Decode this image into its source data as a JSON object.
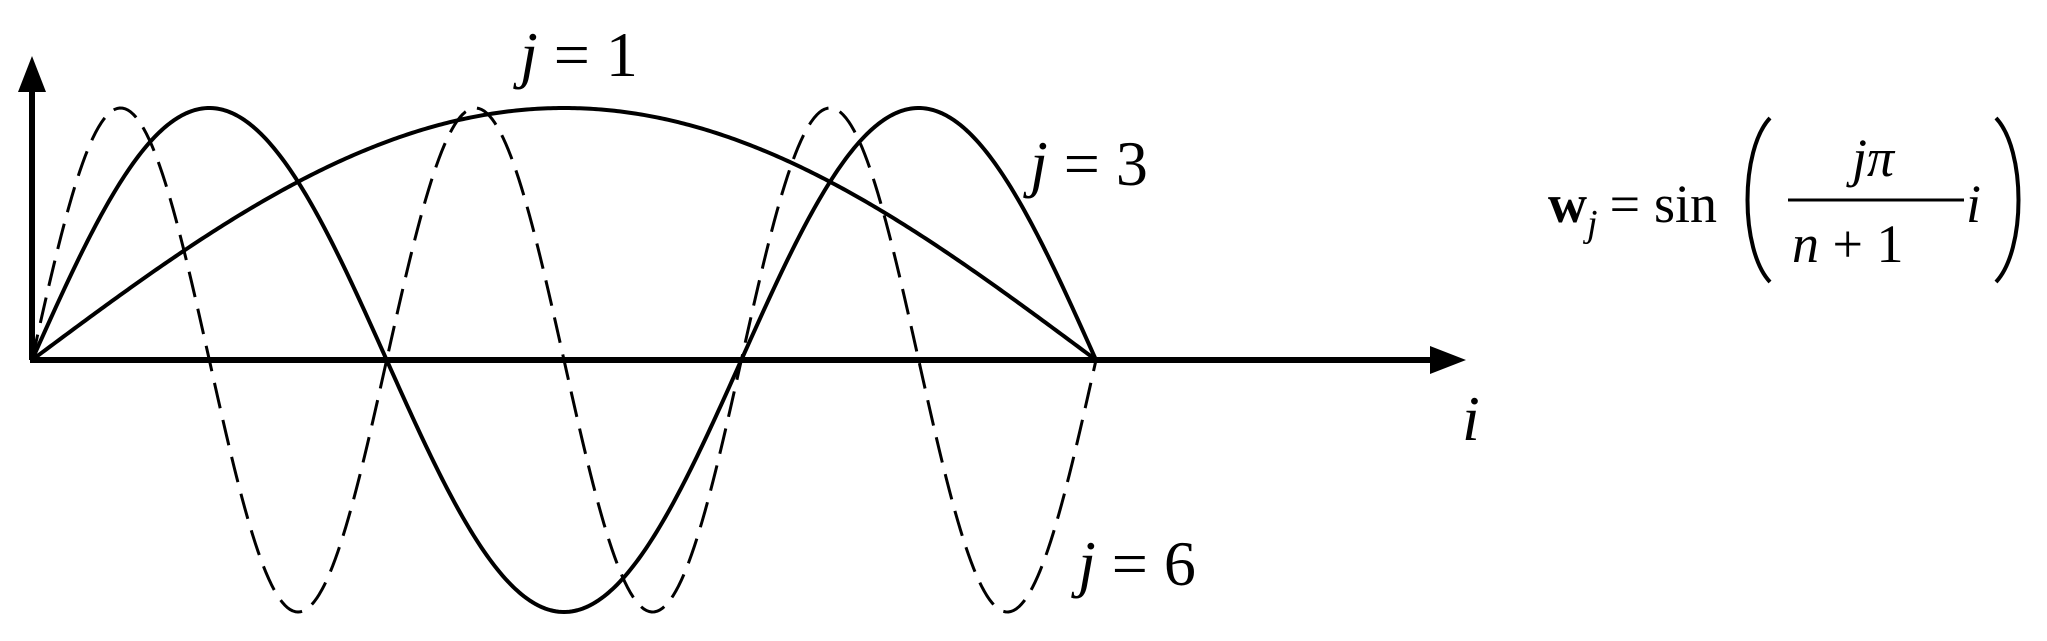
{
  "chart_data": {
    "type": "line",
    "xlabel": "i",
    "ylabel": "",
    "title": "",
    "grid": false,
    "x_domain": [
      0,
      1
    ],
    "y_domain": [
      -1,
      1
    ],
    "series": [
      {
        "name": "j = 1",
        "j": 1,
        "style": "solid",
        "color": "#000000"
      },
      {
        "name": "j = 3",
        "j": 3,
        "style": "solid",
        "color": "#000000"
      },
      {
        "name": "j = 6",
        "j": 6,
        "style": "dashed",
        "color": "#000000"
      }
    ],
    "series_labels": {
      "j1": {
        "var": "j",
        "eq": " = 1"
      },
      "j3": {
        "var": "j",
        "eq": " = 3"
      },
      "j6": {
        "var": "j",
        "eq": " = 6"
      }
    },
    "formula": {
      "lhs_bold": "w",
      "lhs_sub": "j",
      "eq": "=",
      "func": "sin",
      "num_var": "j",
      "num_pi": "π",
      "den_var": "n",
      "den_rest": " + 1",
      "arg": "i"
    }
  }
}
